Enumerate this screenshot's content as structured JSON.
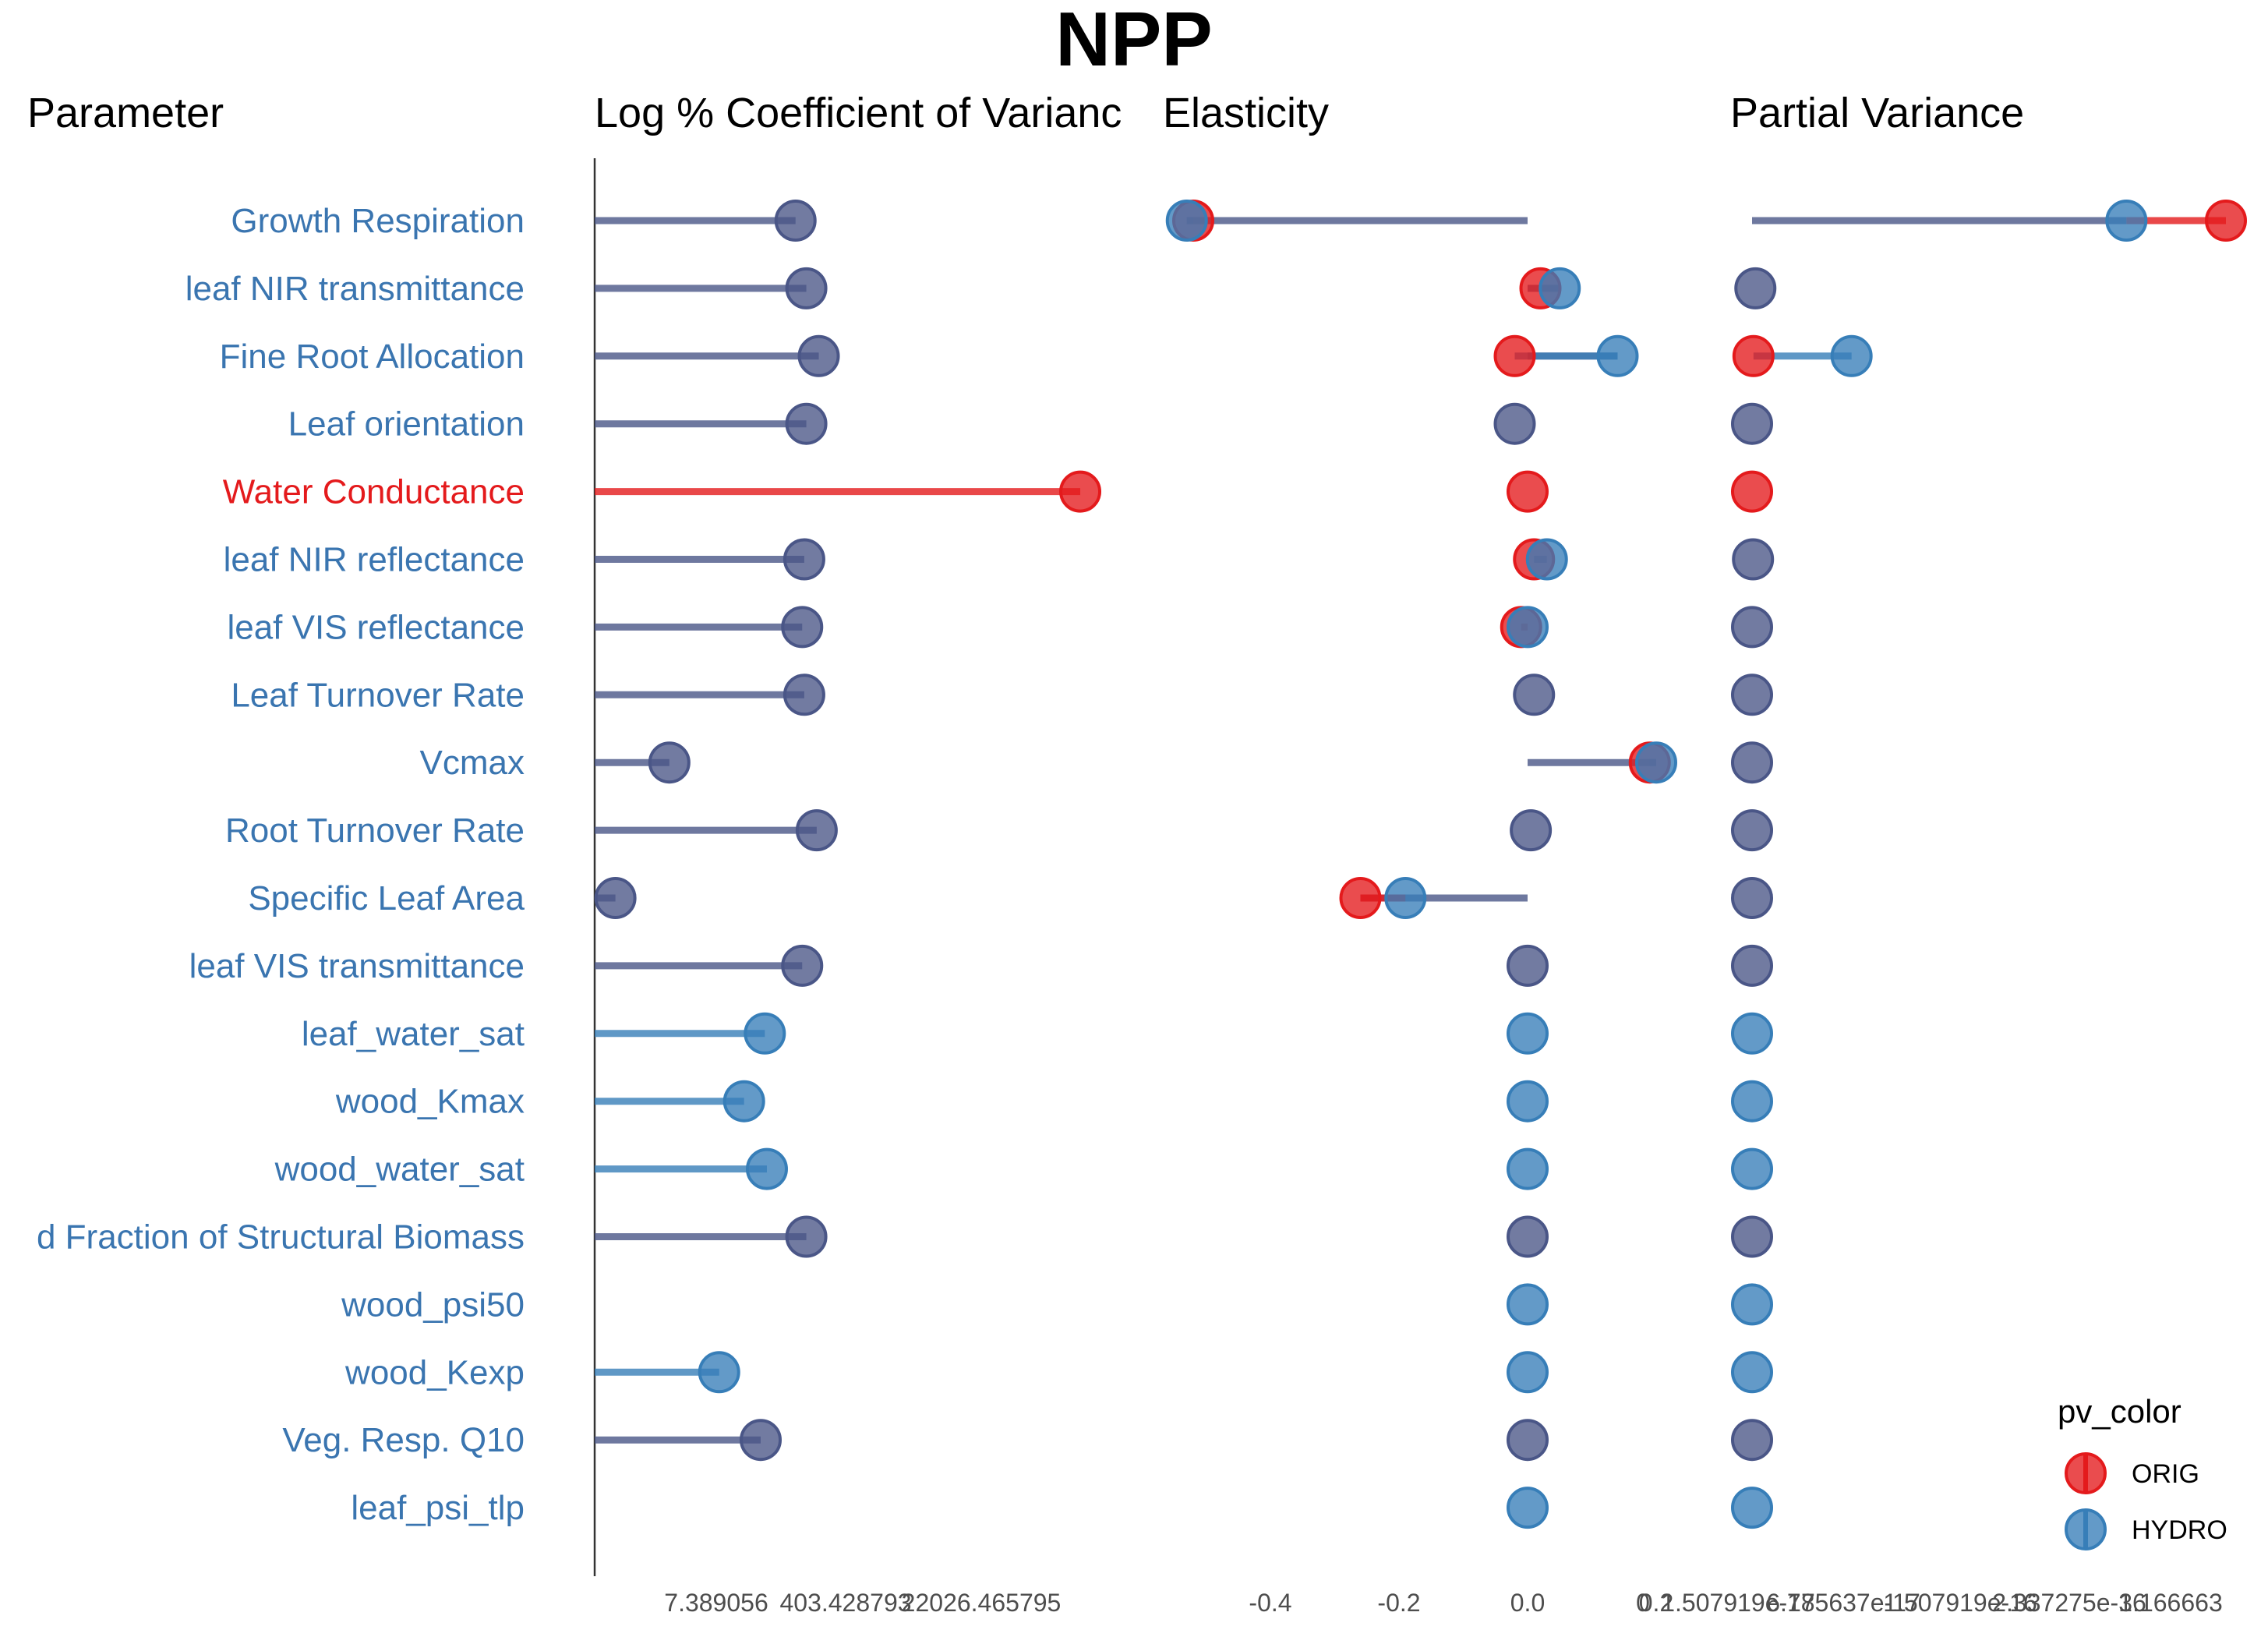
{
  "chart_data": {
    "type": "lollipop",
    "title": "NPP",
    "column_titles": {
      "parameter": "Parameter",
      "cv": "Log % Coefficient of Varianc",
      "elasticity": "Elasticity",
      "partial_variance": "Partial Variance"
    },
    "x_ticks": {
      "cv": [
        "7.389056",
        "403.428793",
        "22026.465795"
      ],
      "elasticity": [
        "-0.4",
        "-0.2",
        "0.0",
        "0.2"
      ],
      "partial_variance": [
        "0",
        "1.507919e-17",
        "6.785637e-17",
        "1.507919e-16",
        "2.337275e-16",
        "3.166663"
      ]
    },
    "legend": {
      "title": "pv_color",
      "position": "bottom-right",
      "entries": [
        {
          "label": "ORIG",
          "color": "#E41A1C"
        },
        {
          "label": "HYDRO",
          "color": "#377EB8"
        }
      ]
    },
    "colors": {
      "orig": "#E41A1C",
      "hydro": "#377EB8",
      "both": "#4A5687"
    },
    "label_colors": {
      "default": "#3A75B0",
      "highlight": "#E41A1C"
    },
    "axes": {
      "cv_log_range": [
        1.0,
        13.0
      ],
      "elasticity_range": [
        -0.55,
        0.2
      ],
      "partial_variance_range": [
        0,
        1
      ]
    },
    "parameters": [
      {
        "name": "Growth Respiration",
        "group": "both",
        "label_color": "default",
        "cv_orig": 5.84,
        "cv_hydro": 5.84,
        "el_orig": -0.52,
        "el_hydro": -0.53,
        "pv_orig": 1.0,
        "pv_hydro": 0.79
      },
      {
        "name": "leaf NIR transmittance",
        "group": "both",
        "label_color": "default",
        "cv_orig": 6.1,
        "cv_hydro": 6.1,
        "el_orig": 0.02,
        "el_hydro": 0.05,
        "pv_orig": 0.005,
        "pv_hydro": 0.007
      },
      {
        "name": "Fine Root Allocation",
        "group": "both",
        "label_color": "default",
        "cv_orig": 6.4,
        "cv_hydro": 6.4,
        "el_orig": -0.02,
        "el_hydro": 0.14,
        "pv_orig": 0.003,
        "pv_hydro": 0.21
      },
      {
        "name": "Leaf orientation",
        "group": "both",
        "label_color": "default",
        "cv_orig": 6.1,
        "cv_hydro": 6.1,
        "el_orig": -0.02,
        "el_hydro": -0.02,
        "pv_orig": 0.0,
        "pv_hydro": 0.0
      },
      {
        "name": "Water Conductance",
        "group": "orig",
        "label_color": "highlight",
        "cv_orig": 12.7,
        "cv_hydro": null,
        "el_orig": 0.0,
        "el_hydro": null,
        "pv_orig": 0.0,
        "pv_hydro": null
      },
      {
        "name": "leaf NIR reflectance",
        "group": "both",
        "label_color": "default",
        "cv_orig": 6.05,
        "cv_hydro": 6.05,
        "el_orig": 0.01,
        "el_hydro": 0.03,
        "pv_orig": 0.0,
        "pv_hydro": 0.002
      },
      {
        "name": "leaf VIS reflectance",
        "group": "both",
        "label_color": "default",
        "cv_orig": 6.0,
        "cv_hydro": 6.0,
        "el_orig": -0.01,
        "el_hydro": 0.0,
        "pv_orig": 0.0,
        "pv_hydro": 0.0
      },
      {
        "name": "Leaf Turnover Rate",
        "group": "both",
        "label_color": "default",
        "cv_orig": 6.05,
        "cv_hydro": 6.05,
        "el_orig": 0.01,
        "el_hydro": 0.01,
        "pv_orig": 0.0,
        "pv_hydro": 0.0
      },
      {
        "name": "Vcmax",
        "group": "both",
        "label_color": "default",
        "cv_orig": 2.8,
        "cv_hydro": 2.8,
        "el_orig": 0.19,
        "el_hydro": 0.2,
        "pv_orig": 0.0,
        "pv_hydro": 0.0
      },
      {
        "name": "Root Turnover Rate",
        "group": "both",
        "label_color": "default",
        "cv_orig": 6.35,
        "cv_hydro": 6.35,
        "el_orig": 0.005,
        "el_hydro": 0.005,
        "pv_orig": 0.0,
        "pv_hydro": 0.0
      },
      {
        "name": "Specific Leaf Area",
        "group": "both",
        "label_color": "default",
        "cv_orig": 1.5,
        "cv_hydro": 1.5,
        "el_orig": -0.26,
        "el_hydro": -0.19,
        "pv_orig": 0.0,
        "pv_hydro": 0.0
      },
      {
        "name": "leaf VIS transmittance",
        "group": "both",
        "label_color": "default",
        "cv_orig": 6.0,
        "cv_hydro": 6.0,
        "el_orig": 0.0,
        "el_hydro": 0.0,
        "pv_orig": 0.0,
        "pv_hydro": 0.0
      },
      {
        "name": "leaf_water_sat",
        "group": "hydro",
        "label_color": "default",
        "cv_orig": null,
        "cv_hydro": 5.1,
        "el_orig": null,
        "el_hydro": 0.0,
        "pv_orig": null,
        "pv_hydro": 0.0
      },
      {
        "name": "wood_Kmax",
        "group": "hydro",
        "label_color": "default",
        "cv_orig": null,
        "cv_hydro": 4.6,
        "el_orig": null,
        "el_hydro": 0.0,
        "pv_orig": null,
        "pv_hydro": 0.0
      },
      {
        "name": "wood_water_sat",
        "group": "hydro",
        "label_color": "default",
        "cv_orig": null,
        "cv_hydro": 5.15,
        "el_orig": null,
        "el_hydro": 0.0,
        "pv_orig": null,
        "pv_hydro": 0.0
      },
      {
        "name": "d Fraction of Structural Biomass",
        "group": "both",
        "label_color": "default",
        "cv_orig": 6.1,
        "cv_hydro": 6.1,
        "el_orig": 0.0,
        "el_hydro": 0.0,
        "pv_orig": 0.0,
        "pv_hydro": 0.0
      },
      {
        "name": "wood_psi50",
        "group": "hydro",
        "label_color": "default",
        "cv_orig": null,
        "cv_hydro": null,
        "el_orig": null,
        "el_hydro": 0.0,
        "pv_orig": null,
        "pv_hydro": 0.0
      },
      {
        "name": "wood_Kexp",
        "group": "hydro",
        "label_color": "default",
        "cv_orig": null,
        "cv_hydro": 4.0,
        "el_orig": null,
        "el_hydro": 0.0,
        "pv_orig": null,
        "pv_hydro": 0.0
      },
      {
        "name": "Veg. Resp. Q10",
        "group": "both",
        "label_color": "default",
        "cv_orig": 5.0,
        "cv_hydro": 5.0,
        "el_orig": 0.0,
        "el_hydro": 0.0,
        "pv_orig": 0.0,
        "pv_hydro": 0.0
      },
      {
        "name": "leaf_psi_tlp",
        "group": "hydro",
        "label_color": "default",
        "cv_orig": null,
        "cv_hydro": null,
        "el_orig": null,
        "el_hydro": 0.0,
        "pv_orig": null,
        "pv_hydro": 0.0
      }
    ]
  }
}
